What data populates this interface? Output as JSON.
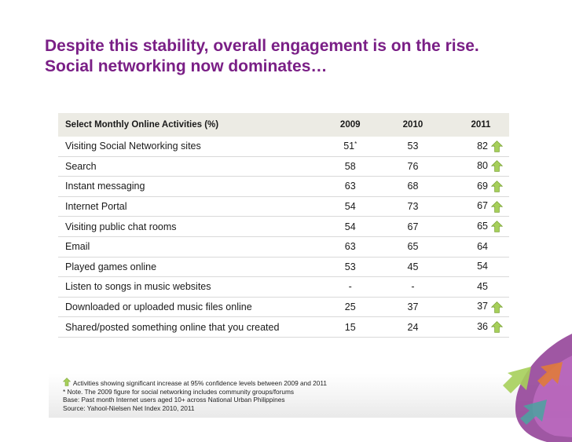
{
  "title": {
    "line1": "Despite this stability, overall engagement is on the rise.",
    "line2": "Social networking now dominates…"
  },
  "table": {
    "headers": {
      "activity": "Select Monthly Online Activities (%)",
      "y2009": "2009",
      "y2010": "2010",
      "y2011": "2011"
    },
    "rows": [
      {
        "activity": "Visiting Social Networking sites",
        "y2009": "51",
        "y2009_mark": "*",
        "y2010": "53",
        "y2011": "82",
        "significant": true
      },
      {
        "activity": "Search",
        "y2009": "58",
        "y2009_mark": "",
        "y2010": "76",
        "y2011": "80",
        "significant": true
      },
      {
        "activity": "Instant messaging",
        "y2009": "63",
        "y2009_mark": "",
        "y2010": "68",
        "y2011": "69",
        "significant": true
      },
      {
        "activity": "Internet Portal",
        "y2009": "54",
        "y2009_mark": "",
        "y2010": "73",
        "y2011": "67",
        "significant": true
      },
      {
        "activity": "Visiting public chat rooms",
        "y2009": "54",
        "y2009_mark": "",
        "y2010": "67",
        "y2011": "65",
        "significant": true
      },
      {
        "activity": "Email",
        "y2009": "63",
        "y2009_mark": "",
        "y2010": "65",
        "y2011": "64",
        "significant": false
      },
      {
        "activity": "Played games online",
        "y2009": "53",
        "y2009_mark": "",
        "y2010": "45",
        "y2011": "54",
        "significant": false
      },
      {
        "activity": "Listen to songs in music websites",
        "y2009": "-",
        "y2009_mark": "",
        "y2010": "-",
        "y2011": "45",
        "significant": false
      },
      {
        "activity": "Downloaded or uploaded music files online",
        "y2009": "25",
        "y2009_mark": "",
        "y2010": "37",
        "y2011": "37",
        "significant": true
      },
      {
        "activity": "Shared/posted something online that you created",
        "y2009": "15",
        "y2009_mark": "",
        "y2010": "24",
        "y2011": "36",
        "significant": true
      }
    ]
  },
  "notes": {
    "legend": "Activities showing significant increase at 95% confidence levels between 2009 and 2011",
    "note": "* Note. The 2009 figure for social networking includes community groups/forums",
    "base": "Base: Past month Internet users aged 10+ across National Urban Philippines",
    "source": "Source: Yahool-Nielsen Net Index 2010, 2011"
  },
  "colors": {
    "title": "#7a1f86",
    "header_bg": "#ecebe4",
    "arrow_fill": "#a6cf5a",
    "arrow_stroke": "#7fa63a"
  },
  "icons": {
    "significance": "up-arrow-icon",
    "decoration": "swirl-arrows-graphic"
  }
}
